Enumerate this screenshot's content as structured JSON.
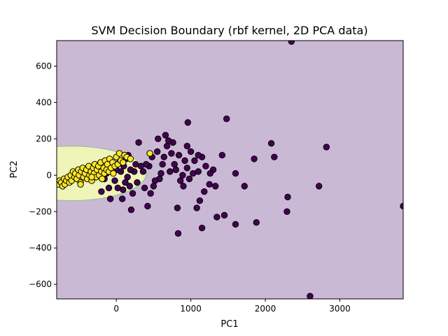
{
  "chart_data": {
    "type": "scatter",
    "title": "SVM Decision Boundary (rbf kernel, 2D PCA data)",
    "xlabel": "PC1",
    "ylabel": "PC2",
    "xlim": [
      -800,
      3850
    ],
    "ylim": [
      -680,
      740
    ],
    "xticks": [
      0,
      1000,
      2000,
      3000
    ],
    "yticks": [
      -600,
      -400,
      -200,
      0,
      200,
      400,
      600
    ],
    "grid": false,
    "legend": "none",
    "colors": {
      "region_class0": "#c9b9d5",
      "region_class1": "#eff4b8",
      "boundary": "#8fc08f",
      "class0_point": "#440154",
      "class1_point": "#fde725",
      "point_edge": "#000000"
    },
    "regions": [
      {
        "class": 1,
        "shape": "ellipse",
        "center": [
          -600,
          10
        ],
        "radii": [
          1000,
          150
        ]
      }
    ],
    "series": [
      {
        "class": 0,
        "points": [
          [
            2350,
            735
          ],
          [
            1480,
            310
          ],
          [
            960,
            290
          ],
          [
            3850,
            -170
          ],
          [
            2600,
            -665
          ],
          [
            2820,
            155
          ],
          [
            2080,
            175
          ],
          [
            2120,
            100
          ],
          [
            2720,
            -60
          ],
          [
            2300,
            -120
          ],
          [
            2290,
            -200
          ],
          [
            1850,
            90
          ],
          [
            1880,
            -260
          ],
          [
            1720,
            -60
          ],
          [
            1600,
            10
          ],
          [
            1600,
            -270
          ],
          [
            1420,
            110
          ],
          [
            1450,
            -220
          ],
          [
            1150,
            -290
          ],
          [
            830,
            -320
          ],
          [
            1350,
            -230
          ],
          [
            1330,
            -60
          ],
          [
            1300,
            30
          ],
          [
            1260,
            10
          ],
          [
            1200,
            50
          ],
          [
            1150,
            100
          ],
          [
            1100,
            110
          ],
          [
            1050,
            80
          ],
          [
            1000,
            130
          ],
          [
            950,
            40
          ],
          [
            920,
            80
          ],
          [
            890,
            0
          ],
          [
            860,
            -30
          ],
          [
            840,
            110
          ],
          [
            820,
            -180
          ],
          [
            800,
            30
          ],
          [
            780,
            60
          ],
          [
            760,
            180
          ],
          [
            740,
            120
          ],
          [
            720,
            20
          ],
          [
            700,
            190
          ],
          [
            680,
            160
          ],
          [
            660,
            220
          ],
          [
            640,
            100
          ],
          [
            620,
            60
          ],
          [
            600,
            10
          ],
          [
            580,
            -20
          ],
          [
            560,
            200
          ],
          [
            550,
            130
          ],
          [
            520,
            -30
          ],
          [
            500,
            -60
          ],
          [
            480,
            100
          ],
          [
            460,
            -100
          ],
          [
            440,
            50
          ],
          [
            420,
            -170
          ],
          [
            400,
            60
          ],
          [
            380,
            -70
          ],
          [
            360,
            20
          ],
          [
            330,
            50
          ],
          [
            300,
            180
          ],
          [
            280,
            -40
          ],
          [
            260,
            60
          ],
          [
            240,
            20
          ],
          [
            220,
            -100
          ],
          [
            200,
            -190
          ],
          [
            190,
            30
          ],
          [
            180,
            -60
          ],
          [
            160,
            110
          ],
          [
            150,
            -10
          ],
          [
            130,
            90
          ],
          [
            120,
            -40
          ],
          [
            100,
            50
          ],
          [
            90,
            -80
          ],
          [
            80,
            -130
          ],
          [
            60,
            20
          ],
          [
            40,
            70
          ],
          [
            20,
            -70
          ],
          [
            0,
            30
          ],
          [
            -20,
            -30
          ],
          [
            -60,
            50
          ],
          [
            -80,
            -130
          ],
          [
            -100,
            -70
          ],
          [
            -130,
            10
          ],
          [
            -160,
            -20
          ],
          [
            -200,
            -90
          ],
          [
            -240,
            20
          ],
          [
            1120,
            -140
          ],
          [
            1250,
            -50
          ],
          [
            1180,
            -90
          ],
          [
            980,
            -20
          ],
          [
            900,
            -60
          ],
          [
            1030,
            10
          ],
          [
            1080,
            -180
          ],
          [
            950,
            160
          ],
          [
            1100,
            20
          ]
        ]
      },
      {
        "class": 1,
        "points": [
          [
            -780,
            -50
          ],
          [
            -760,
            -30
          ],
          [
            -740,
            -40
          ],
          [
            -720,
            -60
          ],
          [
            -700,
            -20
          ],
          [
            -690,
            -50
          ],
          [
            -670,
            -30
          ],
          [
            -650,
            -10
          ],
          [
            -630,
            -40
          ],
          [
            -610,
            0
          ],
          [
            -600,
            -30
          ],
          [
            -580,
            20
          ],
          [
            -560,
            -10
          ],
          [
            -550,
            10
          ],
          [
            -530,
            -20
          ],
          [
            -510,
            30
          ],
          [
            -500,
            0
          ],
          [
            -480,
            -40
          ],
          [
            -470,
            20
          ],
          [
            -450,
            40
          ],
          [
            -440,
            -10
          ],
          [
            -420,
            10
          ],
          [
            -400,
            30
          ],
          [
            -390,
            -20
          ],
          [
            -370,
            50
          ],
          [
            -360,
            0
          ],
          [
            -340,
            20
          ],
          [
            -330,
            -30
          ],
          [
            -310,
            40
          ],
          [
            -300,
            10
          ],
          [
            -290,
            60
          ],
          [
            -270,
            -10
          ],
          [
            -260,
            30
          ],
          [
            -240,
            50
          ],
          [
            -230,
            0
          ],
          [
            -210,
            70
          ],
          [
            -200,
            20
          ],
          [
            -190,
            -20
          ],
          [
            -170,
            40
          ],
          [
            -160,
            10
          ],
          [
            -150,
            80
          ],
          [
            -130,
            30
          ],
          [
            -120,
            60
          ],
          [
            -100,
            20
          ],
          [
            -90,
            90
          ],
          [
            -70,
            40
          ],
          [
            -50,
            70
          ],
          [
            -40,
            10
          ],
          [
            -20,
            50
          ],
          [
            0,
            100
          ],
          [
            20,
            60
          ],
          [
            40,
            120
          ],
          [
            60,
            80
          ],
          [
            90,
            70
          ],
          [
            110,
            110
          ],
          [
            140,
            100
          ],
          [
            190,
            90
          ],
          [
            450,
            120
          ],
          [
            -480,
            -50
          ],
          [
            -330,
            -10
          ]
        ]
      }
    ]
  }
}
